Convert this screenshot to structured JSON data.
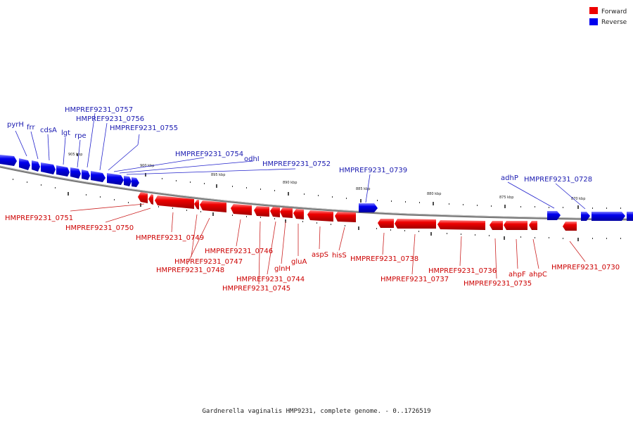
{
  "caption": "Gardnerella vaginalis HMP9231, complete genome. - 0..1726519",
  "legend": [
    {
      "label": "Forward",
      "color": "#ee0000"
    },
    {
      "label": "Reverse",
      "color": "#0000ee"
    }
  ],
  "colors": {
    "forward": "#ee0000",
    "reverse": "#0000ee",
    "backbone": "#777777"
  },
  "scale_labels": [
    "905 kbp",
    "900 kbp",
    "895 kbp",
    "890 kbp",
    "885 kbp",
    "880 kbp",
    "875 kbp",
    "870 kbp"
  ],
  "reverse_labels": [
    "pyrH",
    "frr",
    "cdsA",
    "lgt",
    "rpe",
    "HMPREF9231_0757",
    "HMPREF9231_0756",
    "HMPREF9231_0755",
    "HMPREF9231_0754",
    "odhI",
    "HMPREF9231_0752",
    "HMPREF9231_0739",
    "adhP",
    "HMPREF9231_0728"
  ],
  "forward_labels": [
    "HMPREF9231_0751",
    "HMPREF9231_0750",
    "HMPREF9231_0749",
    "HMPREF9231_0747",
    "HMPREF9231_0748",
    "HMPREF9231_0746",
    "HMPREF9231_0744",
    "glnH",
    "HMPREF9231_0745",
    "gluA",
    "aspS",
    "hisS",
    "HMPREF9231_0738",
    "HMPREF9231_0737",
    "HMPREF9231_0736",
    "HMPREF9231_0735",
    "ahpF",
    "ahpC",
    "HMPREF9231_0730"
  ]
}
